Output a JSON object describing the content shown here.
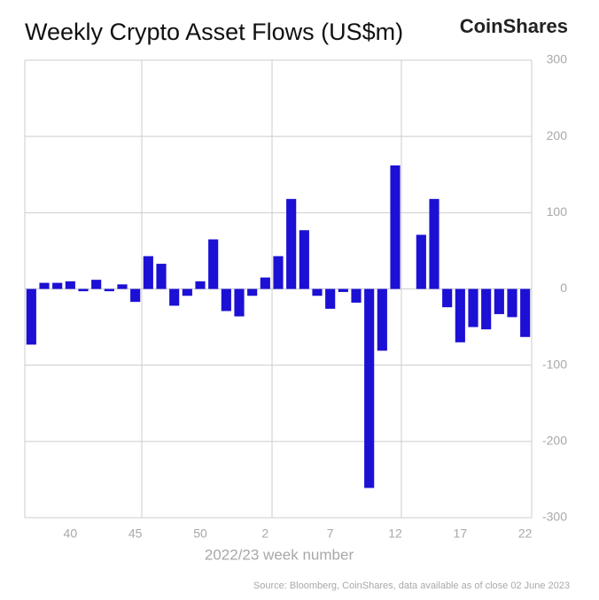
{
  "chart_data": {
    "type": "bar",
    "title": "Weekly Crypto Asset Flows (US$m)",
    "brand": "CoinShares",
    "x_label": "2022/23 week number",
    "source": "Source: Bloomberg, CoinShares, data available as of close 02 June 2023",
    "color": "#1c10d4",
    "categories": [
      null,
      null,
      null,
      "40",
      null,
      null,
      null,
      null,
      "45",
      null,
      null,
      null,
      null,
      "50",
      null,
      null,
      null,
      null,
      "2",
      null,
      null,
      null,
      null,
      "7",
      null,
      null,
      null,
      null,
      "12",
      null,
      null,
      null,
      null,
      "17",
      null,
      null,
      null,
      null,
      "22"
    ],
    "values": [
      -73,
      8,
      8,
      10,
      -3,
      12,
      -3,
      6,
      -17,
      43,
      33,
      -22,
      -9,
      10,
      65,
      -29,
      -36,
      -9,
      15,
      43,
      118,
      77,
      -9,
      -26,
      -4,
      -18,
      -261,
      -81,
      162,
      0,
      71,
      118,
      -24,
      -70,
      -50,
      -53,
      -33,
      -37,
      -63
    ],
    "ylim": [
      -300,
      300
    ],
    "yticks": [
      -300,
      -200,
      -100,
      0,
      100,
      200,
      300
    ],
    "grid": true
  }
}
